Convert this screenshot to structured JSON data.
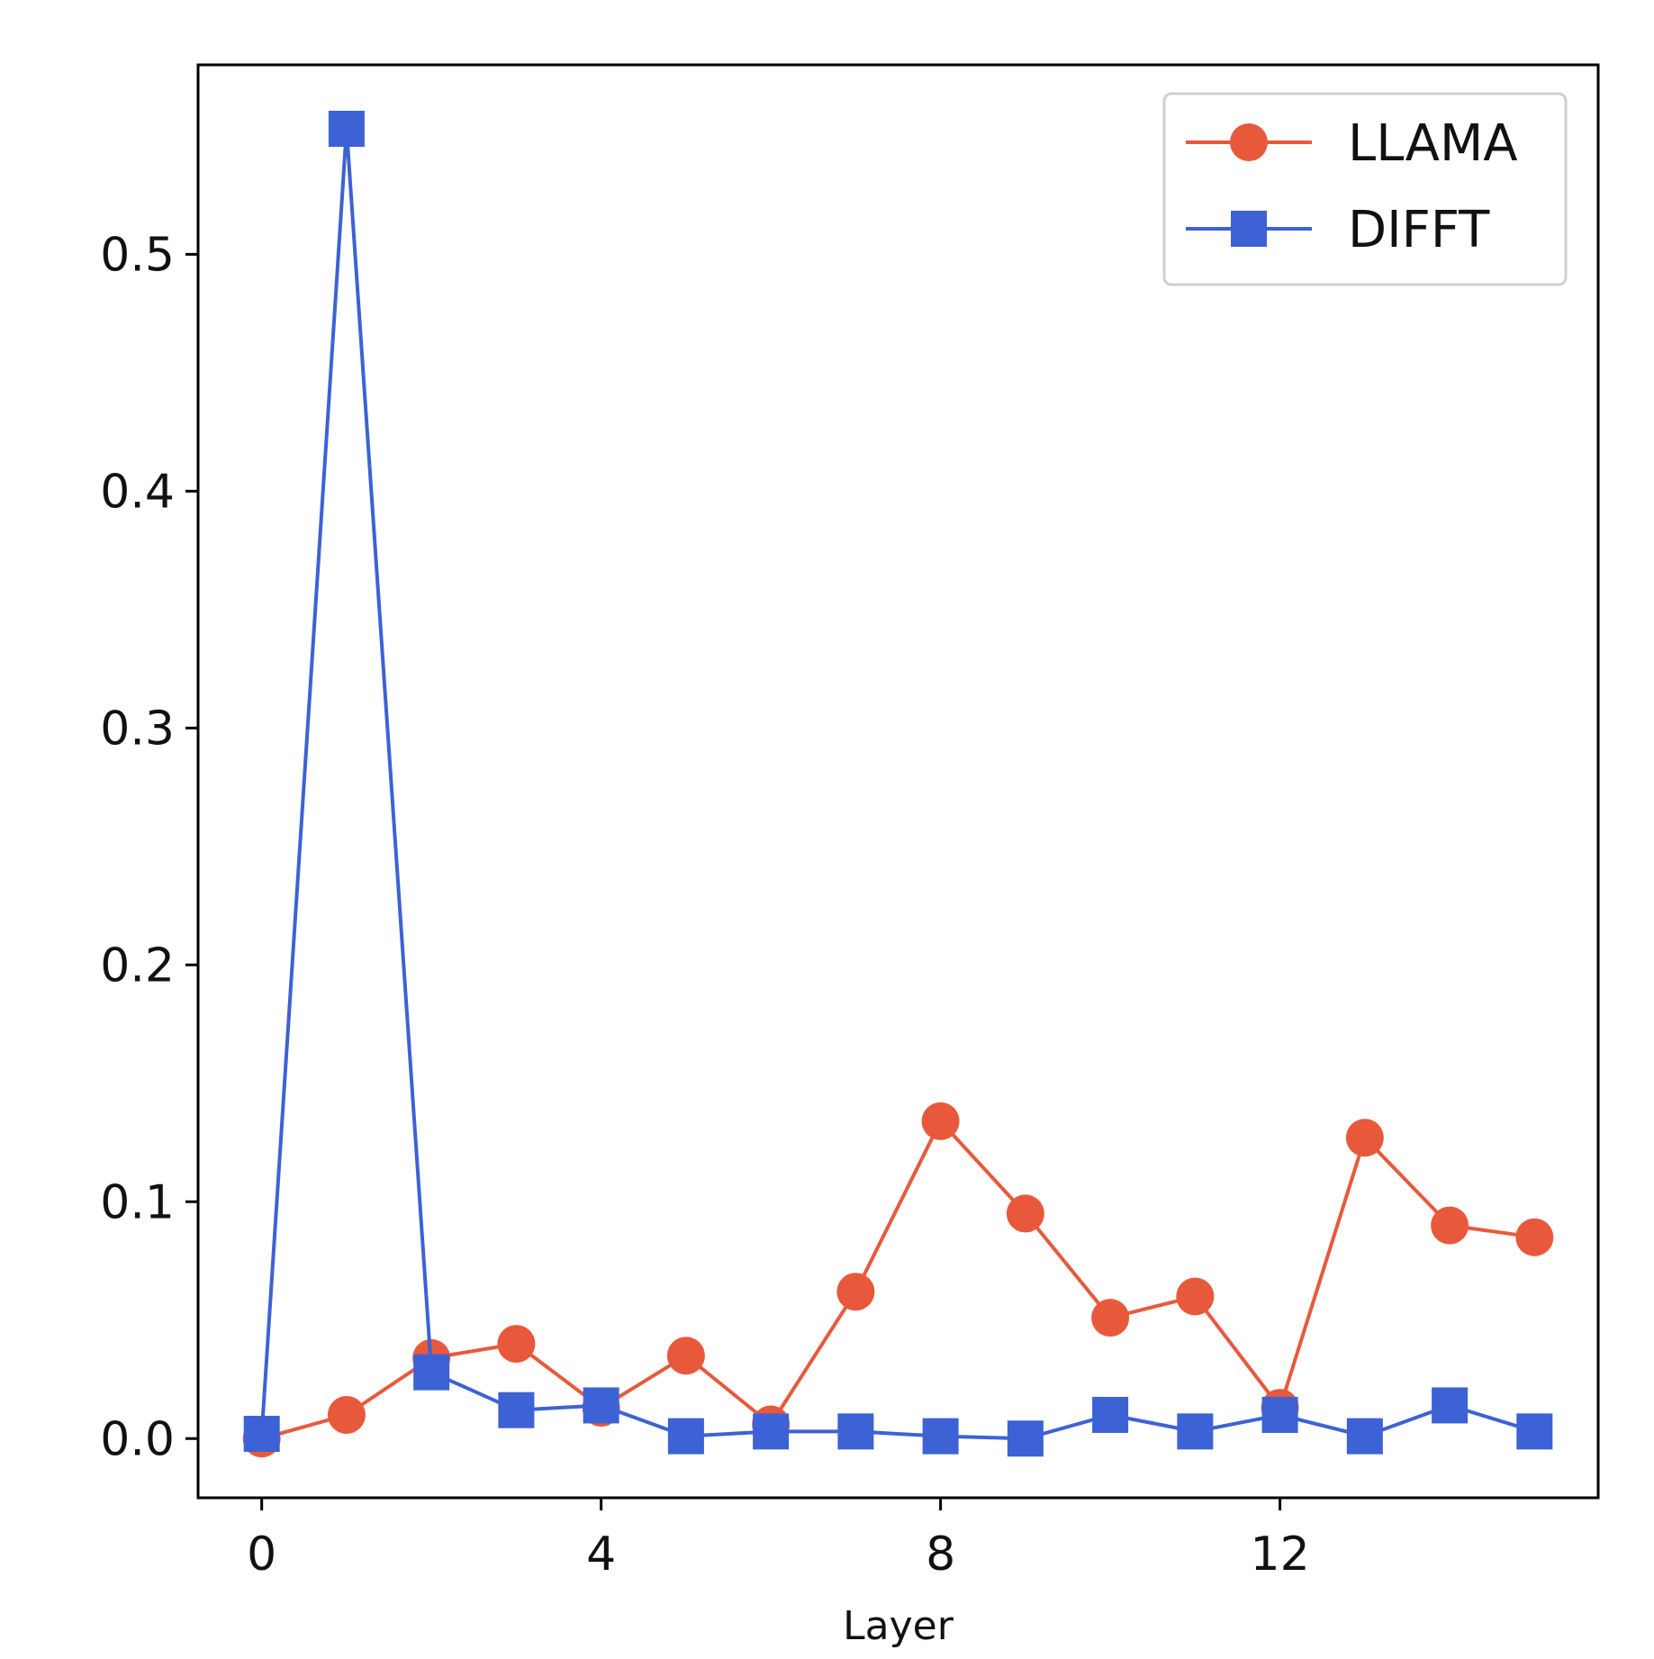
{
  "chart_data": {
    "type": "line",
    "title": "",
    "xlabel": "Layer",
    "ylabel": "",
    "x": [
      0,
      1,
      2,
      3,
      4,
      5,
      6,
      7,
      8,
      9,
      10,
      11,
      12,
      13,
      14,
      15
    ],
    "xticks": [
      0,
      4,
      8,
      12
    ],
    "yticks": [
      0.0,
      0.1,
      0.2,
      0.3,
      0.4,
      0.5
    ],
    "xtick_labels": [
      "0",
      "4",
      "8",
      "12"
    ],
    "ytick_labels": [
      "0.0",
      "0.1",
      "0.2",
      "0.3",
      "0.4",
      "0.5"
    ],
    "xlim": [
      -0.75,
      15.75
    ],
    "ylim": [
      -0.025,
      0.58
    ],
    "grid": false,
    "legend_position": "top-right",
    "series": [
      {
        "name": "LLAMA",
        "color": "#e8593c",
        "marker": "circle",
        "values": [
          0.0,
          0.01,
          0.034,
          0.04,
          0.013,
          0.035,
          0.006,
          0.062,
          0.134,
          0.095,
          0.051,
          0.06,
          0.013,
          0.127,
          0.09,
          0.085
        ]
      },
      {
        "name": "DIFFT",
        "color": "#3d62d6",
        "marker": "square",
        "values": [
          0.002,
          0.553,
          0.028,
          0.012,
          0.014,
          0.001,
          0.003,
          0.003,
          0.001,
          0.0,
          0.01,
          0.003,
          0.01,
          0.001,
          0.014,
          0.003
        ]
      }
    ]
  }
}
